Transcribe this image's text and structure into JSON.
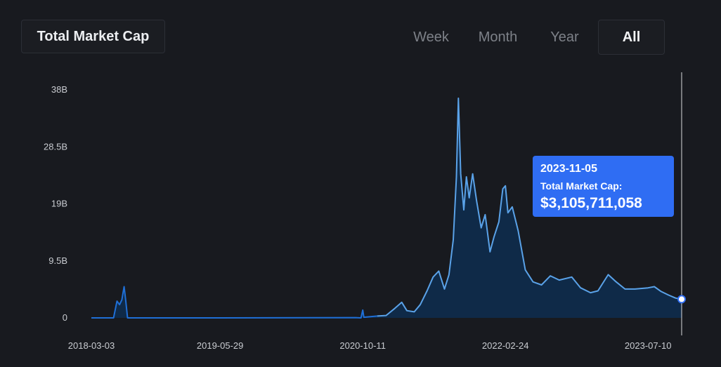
{
  "header": {
    "title": "Total Market Cap"
  },
  "range_tabs": [
    {
      "label": "Week",
      "active": false
    },
    {
      "label": "Month",
      "active": false
    },
    {
      "label": "Year",
      "active": false
    },
    {
      "label": "All",
      "active": true
    }
  ],
  "tooltip": {
    "date": "2023-11-05",
    "label": "Total Market Cap:",
    "value": "$3,105,711,058"
  },
  "colors": {
    "line": "#5aa2e8",
    "line_early": "#1f6fd6",
    "area": "#0f2a48",
    "tooltip_bg": "#2f6df3",
    "background": "#181a1f"
  },
  "chart_data": {
    "type": "area",
    "title": "Total Market Cap",
    "xlabel": "",
    "ylabel": "",
    "ylim": [
      0,
      38
    ],
    "y_unit": "B",
    "y_ticks": [
      {
        "value": 0,
        "label": "0"
      },
      {
        "value": 9.5,
        "label": "9.5B"
      },
      {
        "value": 19,
        "label": "19B"
      },
      {
        "value": 28.5,
        "label": "28.5B"
      },
      {
        "value": 38,
        "label": "38B"
      }
    ],
    "x_range": [
      "2018-03-03",
      "2023-11-05"
    ],
    "x_ticks": [
      "2018-03-03",
      "2019-05-29",
      "2020-10-11",
      "2022-02-24",
      "2023-07-10"
    ],
    "grid": false,
    "series": [
      {
        "values": [
          [
            "2018-03-03",
            0.0
          ],
          [
            "2018-05-20",
            0.0
          ],
          [
            "2018-06-01",
            2.8
          ],
          [
            "2018-06-10",
            2.2
          ],
          [
            "2018-06-18",
            3.0
          ],
          [
            "2018-06-26",
            5.2
          ],
          [
            "2018-07-02",
            2.8
          ],
          [
            "2018-07-08",
            0.0
          ],
          [
            "2019-05-29",
            0.0
          ],
          [
            "2020-09-15",
            0.05
          ],
          [
            "2020-10-05",
            0.0
          ],
          [
            "2020-10-11",
            1.3
          ],
          [
            "2020-10-15",
            0.1
          ],
          [
            "2020-12-01",
            0.3
          ],
          [
            "2021-01-01",
            0.4
          ],
          [
            "2021-02-01",
            1.6
          ],
          [
            "2021-02-25",
            2.6
          ],
          [
            "2021-03-15",
            1.2
          ],
          [
            "2021-04-10",
            1.0
          ],
          [
            "2021-05-01",
            2.2
          ],
          [
            "2021-05-25",
            4.5
          ],
          [
            "2021-06-15",
            6.8
          ],
          [
            "2021-07-05",
            7.8
          ],
          [
            "2021-07-25",
            4.8
          ],
          [
            "2021-08-10",
            7.2
          ],
          [
            "2021-08-25",
            13.0
          ],
          [
            "2021-09-05",
            23.5
          ],
          [
            "2021-09-12",
            36.6
          ],
          [
            "2021-09-20",
            24.0
          ],
          [
            "2021-10-01",
            18.0
          ],
          [
            "2021-10-10",
            23.5
          ],
          [
            "2021-10-20",
            20.0
          ],
          [
            "2021-11-01",
            24.0
          ],
          [
            "2021-11-15",
            19.5
          ],
          [
            "2021-12-01",
            15.0
          ],
          [
            "2021-12-15",
            17.2
          ],
          [
            "2022-01-01",
            11.0
          ],
          [
            "2022-01-15",
            13.5
          ],
          [
            "2022-02-01",
            16.0
          ],
          [
            "2022-02-15",
            21.5
          ],
          [
            "2022-02-24",
            22.0
          ],
          [
            "2022-03-05",
            17.5
          ],
          [
            "2022-03-20",
            18.5
          ],
          [
            "2022-04-10",
            14.5
          ],
          [
            "2022-05-05",
            8.0
          ],
          [
            "2022-06-01",
            6.0
          ],
          [
            "2022-07-01",
            5.5
          ],
          [
            "2022-08-01",
            7.0
          ],
          [
            "2022-09-01",
            6.3
          ],
          [
            "2022-10-15",
            6.8
          ],
          [
            "2022-11-15",
            5.0
          ],
          [
            "2022-12-20",
            4.2
          ],
          [
            "2023-01-15",
            4.5
          ],
          [
            "2023-02-20",
            7.2
          ],
          [
            "2023-03-20",
            6.0
          ],
          [
            "2023-04-20",
            4.8
          ],
          [
            "2023-05-25",
            4.8
          ],
          [
            "2023-07-10",
            5.0
          ],
          [
            "2023-08-01",
            5.2
          ],
          [
            "2023-08-25",
            4.4
          ],
          [
            "2023-09-20",
            3.8
          ],
          [
            "2023-10-15",
            3.3
          ],
          [
            "2023-11-05",
            3.11
          ]
        ]
      }
    ],
    "highlight": {
      "x": "2023-11-05",
      "y": 3.11
    }
  }
}
